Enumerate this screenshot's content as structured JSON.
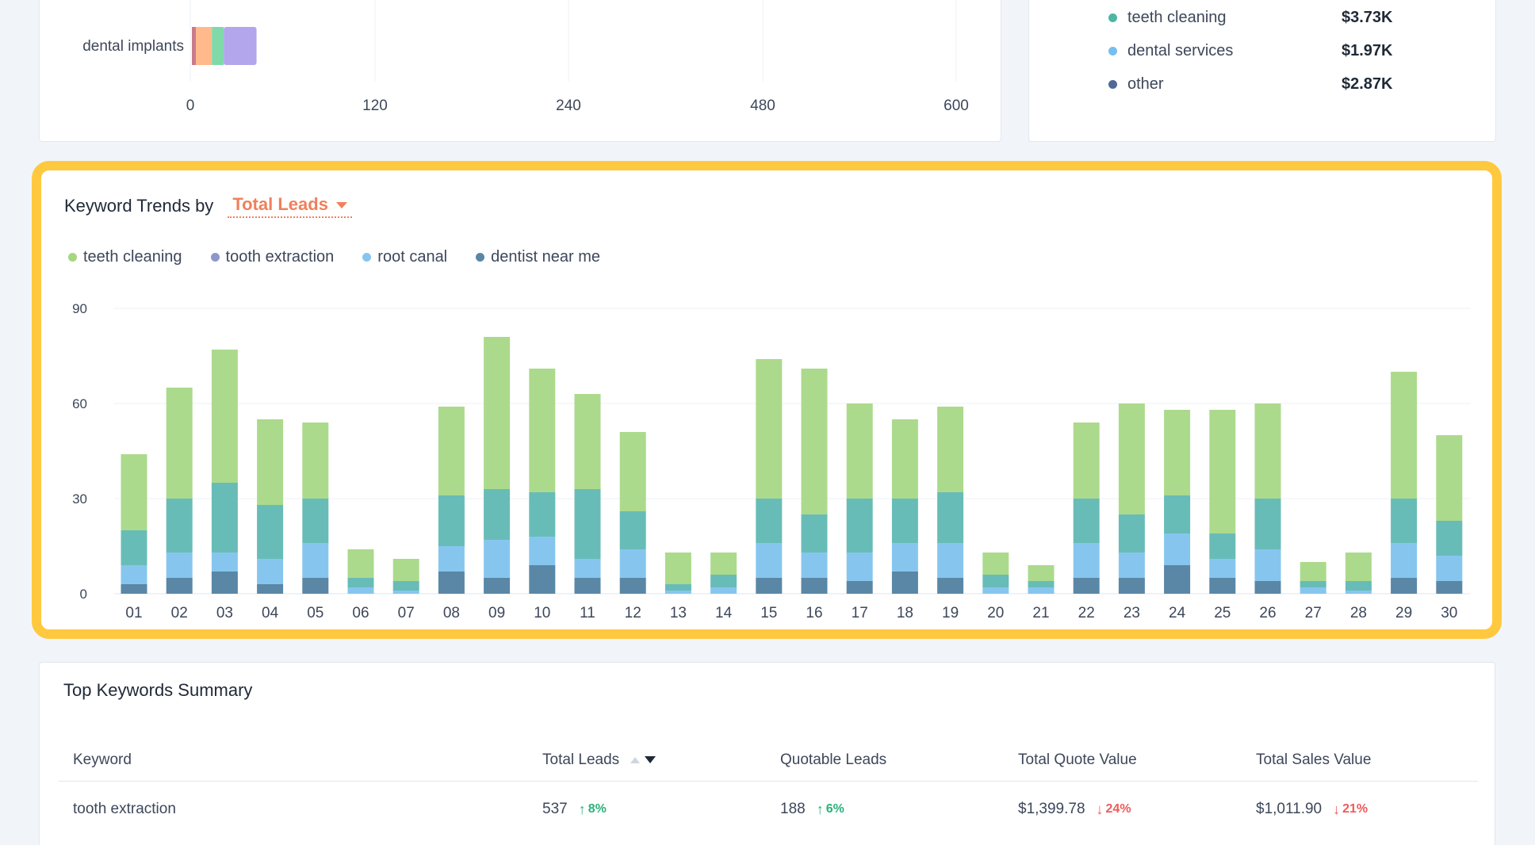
{
  "colors": {
    "accent": "#f0805c",
    "highlight_border": "#ffc93f",
    "up": "#2ab27b",
    "down": "#ef5a5a"
  },
  "top_bar_chart": {
    "row_label": "dental implants",
    "ticks": [
      "0",
      "120",
      "240",
      "480",
      "600"
    ],
    "segments": [
      {
        "color": "#c97a8a",
        "value": 2.6
      },
      {
        "color": "#ffb98a",
        "value": 10.4
      },
      {
        "color": "#7fd9a8",
        "value": 7.7
      },
      {
        "color": "#b3a6ec",
        "value": 21.3
      }
    ]
  },
  "value_legend": [
    {
      "label": "teeth cleaning",
      "value": "$3.73K",
      "color": "#4db6a4"
    },
    {
      "label": "dental services",
      "value": "$1.97K",
      "color": "#75bff0"
    },
    {
      "label": "other",
      "value": "$2.87K",
      "color": "#4e6a97"
    }
  ],
  "trends": {
    "title": "Keyword Trends by",
    "metric": "Total Leads"
  },
  "chart_data": {
    "type": "bar",
    "stacked": true,
    "categories": [
      "01",
      "02",
      "03",
      "04",
      "05",
      "06",
      "07",
      "08",
      "09",
      "10",
      "11",
      "12",
      "13",
      "14",
      "15",
      "16",
      "17",
      "18",
      "19",
      "20",
      "21",
      "22",
      "23",
      "24",
      "25",
      "26",
      "27",
      "28",
      "29",
      "30"
    ],
    "ylim": [
      0,
      90
    ],
    "yticks": [
      0,
      30,
      60,
      90
    ],
    "legend_position": "top-left",
    "grid": true,
    "series": [
      {
        "name": "dentist near me",
        "color": "#5a87a6",
        "values": [
          3,
          5,
          7,
          3,
          5,
          0,
          0,
          7,
          5,
          9,
          5,
          5,
          0,
          0,
          5,
          5,
          4,
          7,
          5,
          0,
          0,
          5,
          5,
          9,
          5,
          4,
          0,
          0,
          5,
          4
        ]
      },
      {
        "name": "root canal",
        "color": "#86c6ee",
        "values": [
          6,
          8,
          6,
          8,
          11,
          2,
          1,
          8,
          12,
          9,
          6,
          9,
          1,
          2,
          11,
          8,
          9,
          9,
          11,
          2,
          2,
          11,
          8,
          10,
          6,
          10,
          2,
          1,
          11,
          8
        ]
      },
      {
        "name": "tooth extraction",
        "color": "#68bcb7",
        "values": [
          11,
          17,
          22,
          17,
          14,
          3,
          3,
          16,
          16,
          14,
          22,
          12,
          2,
          4,
          14,
          12,
          17,
          14,
          16,
          4,
          2,
          14,
          12,
          12,
          8,
          16,
          2,
          3,
          14,
          11
        ]
      },
      {
        "name": "teeth cleaning",
        "color": "#acda8c",
        "values": [
          24,
          35,
          42,
          27,
          24,
          9,
          7,
          28,
          48,
          39,
          30,
          25,
          10,
          7,
          44,
          46,
          30,
          25,
          27,
          7,
          5,
          24,
          35,
          27,
          39,
          30,
          6,
          9,
          40,
          27
        ]
      }
    ],
    "legend_order": [
      "teeth cleaning",
      "tooth extraction",
      "root canal",
      "dentist near me"
    ],
    "legend_colors": [
      "#a4d77f",
      "#8e97cb",
      "#86c6ee",
      "#5a87a6"
    ]
  },
  "summary": {
    "title": "Top Keywords Summary",
    "columns": [
      "Keyword",
      "Total Leads",
      "Quotable Leads",
      "Total Quote Value",
      "Total Sales Value"
    ],
    "rows": [
      {
        "keyword": "tooth extraction",
        "total_leads": "537",
        "total_leads_delta": "8%",
        "quotable_leads": "188",
        "quotable_leads_delta": "6%",
        "quote_value": "$1,399.78",
        "quote_value_delta": "24%",
        "sales_value": "$1,011.90",
        "sales_value_delta": "21%"
      }
    ]
  }
}
